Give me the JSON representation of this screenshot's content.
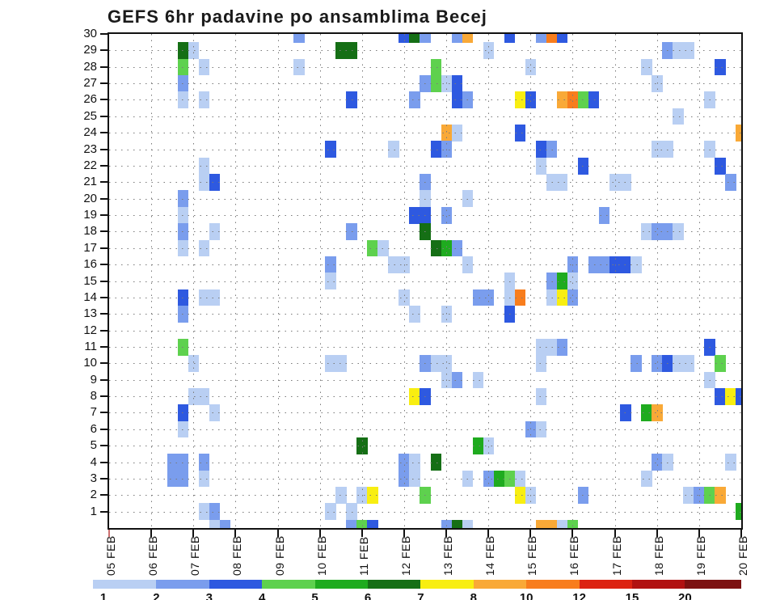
{
  "title": "GEFS 6hr padavine po ansamblima Becej",
  "chart_data": {
    "type": "heatmap",
    "title": "GEFS 6hr padavine po ansamblima Becej",
    "xlabel": "",
    "ylabel": "",
    "x_tick_labels": [
      "05 FEB",
      "06 FEB",
      "07 FEB",
      "08 FEB",
      "09 FEB",
      "10 FEB",
      "11 FEB",
      "12 FEB",
      "13 FEB",
      "14 FEB",
      "15 FEB",
      "16 FEB",
      "17 FEB",
      "18 FEB",
      "19 FEB",
      "20 FEB"
    ],
    "x_steps_per_day": 4,
    "y_tick_labels": [
      "30",
      "29",
      "28",
      "27",
      "26",
      "25",
      "24",
      "23",
      "22",
      "21",
      "20",
      "19",
      "18",
      "17",
      "16",
      "15",
      "14",
      "13",
      "12",
      "11",
      "10",
      "9",
      "8",
      "7",
      "6",
      "5",
      "4",
      "3",
      "2",
      "1"
    ],
    "y_range": [
      0,
      30
    ],
    "grid": "dotted",
    "frame_color": "#111111",
    "grid_dot_color": "#7a7a7a",
    "origin_tick_color": "#cc7070",
    "palette": {
      "c1": "#b9cff3",
      "c2": "#7a9ded",
      "c3": "#2e59e0",
      "c4": "#5ed14e",
      "c5": "#1fab1f",
      "c6": "#156f15",
      "c7": "#f8ee11",
      "c8": "#f9a937",
      "c10": "#f87d1d",
      "c12": "#dc2312",
      "c15": "#b11212",
      "c20": "#7c1111"
    },
    "colorbar": {
      "labels": [
        "1",
        "2",
        "3",
        "4",
        "5",
        "6",
        "7",
        "8",
        "10",
        "12",
        "15",
        "20"
      ],
      "segment_colors": [
        "#b9cff3",
        "#7a9ded",
        "#2e59e0",
        "#5ed14e",
        "#1fab1f",
        "#156f15",
        "#f8ee11",
        "#f9a937",
        "#f87d1d",
        "#dc2312",
        "#b11212",
        "#7c1111"
      ]
    },
    "cells": [
      [
        18,
        30,
        "c2"
      ],
      [
        28,
        30,
        "c3"
      ],
      [
        29,
        30,
        "c6"
      ],
      [
        30,
        30,
        "c2"
      ],
      [
        33,
        30,
        "c2"
      ],
      [
        34,
        30,
        "c8"
      ],
      [
        38,
        30,
        "c3"
      ],
      [
        41,
        30,
        "c2"
      ],
      [
        42,
        30,
        "c10"
      ],
      [
        43,
        30,
        "c3"
      ],
      [
        7,
        29,
        "c6"
      ],
      [
        8,
        29,
        "c1"
      ],
      [
        22,
        29,
        "c6"
      ],
      [
        23,
        29,
        "c6"
      ],
      [
        36,
        29,
        "c1"
      ],
      [
        53,
        29,
        "c2"
      ],
      [
        54,
        29,
        "c1"
      ],
      [
        55,
        29,
        "c1"
      ],
      [
        7,
        28,
        "c4"
      ],
      [
        9,
        28,
        "c1"
      ],
      [
        18,
        28,
        "c1"
      ],
      [
        31,
        28,
        "c4"
      ],
      [
        40,
        28,
        "c1"
      ],
      [
        51,
        28,
        "c1"
      ],
      [
        58,
        28,
        "c3"
      ],
      [
        7,
        27,
        "c2"
      ],
      [
        30,
        27,
        "c2"
      ],
      [
        31,
        27,
        "c4"
      ],
      [
        32,
        27,
        "c1"
      ],
      [
        33,
        27,
        "c3"
      ],
      [
        52,
        27,
        "c1"
      ],
      [
        7,
        26,
        "c1"
      ],
      [
        9,
        26,
        "c1"
      ],
      [
        23,
        26,
        "c3"
      ],
      [
        29,
        26,
        "c2"
      ],
      [
        33,
        26,
        "c3"
      ],
      [
        34,
        26,
        "c2"
      ],
      [
        39,
        26,
        "c7"
      ],
      [
        40,
        26,
        "c3"
      ],
      [
        43,
        26,
        "c8"
      ],
      [
        44,
        26,
        "c10"
      ],
      [
        45,
        26,
        "c4"
      ],
      [
        46,
        26,
        "c3"
      ],
      [
        57,
        26,
        "c1"
      ],
      [
        54,
        25,
        "c1"
      ],
      [
        32,
        24,
        "c8"
      ],
      [
        33,
        24,
        "c1"
      ],
      [
        39,
        24,
        "c3"
      ],
      [
        60,
        24,
        "c8"
      ],
      [
        21,
        23,
        "c3"
      ],
      [
        27,
        23,
        "c1"
      ],
      [
        31,
        23,
        "c3"
      ],
      [
        32,
        23,
        "c2"
      ],
      [
        41,
        23,
        "c3"
      ],
      [
        42,
        23,
        "c2"
      ],
      [
        52,
        23,
        "c1"
      ],
      [
        53,
        23,
        "c1"
      ],
      [
        57,
        23,
        "c1"
      ],
      [
        9,
        22,
        "c1"
      ],
      [
        41,
        22,
        "c1"
      ],
      [
        45,
        22,
        "c3"
      ],
      [
        58,
        22,
        "c3"
      ],
      [
        9,
        21,
        "c1"
      ],
      [
        10,
        21,
        "c3"
      ],
      [
        30,
        21,
        "c2"
      ],
      [
        42,
        21,
        "c1"
      ],
      [
        43,
        21,
        "c1"
      ],
      [
        48,
        21,
        "c1"
      ],
      [
        49,
        21,
        "c1"
      ],
      [
        59,
        21,
        "c2"
      ],
      [
        7,
        20,
        "c2"
      ],
      [
        30,
        20,
        "c1"
      ],
      [
        34,
        20,
        "c1"
      ],
      [
        7,
        19,
        "c1"
      ],
      [
        29,
        19,
        "c3"
      ],
      [
        30,
        19,
        "c3"
      ],
      [
        32,
        19,
        "c2"
      ],
      [
        47,
        19,
        "c2"
      ],
      [
        7,
        18,
        "c2"
      ],
      [
        10,
        18,
        "c1"
      ],
      [
        23,
        18,
        "c2"
      ],
      [
        30,
        18,
        "c6"
      ],
      [
        51,
        18,
        "c1"
      ],
      [
        52,
        18,
        "c2"
      ],
      [
        53,
        18,
        "c2"
      ],
      [
        54,
        18,
        "c1"
      ],
      [
        7,
        17,
        "c1"
      ],
      [
        9,
        17,
        "c1"
      ],
      [
        25,
        17,
        "c4"
      ],
      [
        26,
        17,
        "c1"
      ],
      [
        31,
        17,
        "c6"
      ],
      [
        32,
        17,
        "c5"
      ],
      [
        33,
        17,
        "c2"
      ],
      [
        21,
        16,
        "c2"
      ],
      [
        27,
        16,
        "c1"
      ],
      [
        28,
        16,
        "c1"
      ],
      [
        34,
        16,
        "c1"
      ],
      [
        44,
        16,
        "c2"
      ],
      [
        46,
        16,
        "c2"
      ],
      [
        47,
        16,
        "c2"
      ],
      [
        48,
        16,
        "c3"
      ],
      [
        49,
        16,
        "c3"
      ],
      [
        50,
        16,
        "c1"
      ],
      [
        21,
        15,
        "c1"
      ],
      [
        38,
        15,
        "c1"
      ],
      [
        42,
        15,
        "c2"
      ],
      [
        43,
        15,
        "c5"
      ],
      [
        44,
        15,
        "c1"
      ],
      [
        7,
        14,
        "c3"
      ],
      [
        9,
        14,
        "c1"
      ],
      [
        10,
        14,
        "c1"
      ],
      [
        28,
        14,
        "c1"
      ],
      [
        35,
        14,
        "c2"
      ],
      [
        36,
        14,
        "c2"
      ],
      [
        38,
        14,
        "c1"
      ],
      [
        39,
        14,
        "c10"
      ],
      [
        42,
        14,
        "c1"
      ],
      [
        43,
        14,
        "c7"
      ],
      [
        44,
        14,
        "c2"
      ],
      [
        7,
        13,
        "c2"
      ],
      [
        29,
        13,
        "c1"
      ],
      [
        32,
        13,
        "c1"
      ],
      [
        38,
        13,
        "c3"
      ],
      [
        7,
        11,
        "c4"
      ],
      [
        41,
        11,
        "c1"
      ],
      [
        42,
        11,
        "c1"
      ],
      [
        43,
        11,
        "c2"
      ],
      [
        57,
        11,
        "c3"
      ],
      [
        8,
        10,
        "c1"
      ],
      [
        21,
        10,
        "c1"
      ],
      [
        22,
        10,
        "c1"
      ],
      [
        30,
        10,
        "c2"
      ],
      [
        31,
        10,
        "c1"
      ],
      [
        32,
        10,
        "c1"
      ],
      [
        41,
        10,
        "c1"
      ],
      [
        50,
        10,
        "c2"
      ],
      [
        52,
        10,
        "c2"
      ],
      [
        53,
        10,
        "c3"
      ],
      [
        54,
        10,
        "c1"
      ],
      [
        55,
        10,
        "c1"
      ],
      [
        58,
        10,
        "c4"
      ],
      [
        32,
        9,
        "c1"
      ],
      [
        33,
        9,
        "c2"
      ],
      [
        35,
        9,
        "c1"
      ],
      [
        57,
        9,
        "c1"
      ],
      [
        8,
        8,
        "c1"
      ],
      [
        9,
        8,
        "c1"
      ],
      [
        29,
        8,
        "c7"
      ],
      [
        30,
        8,
        "c3"
      ],
      [
        41,
        8,
        "c1"
      ],
      [
        58,
        8,
        "c3"
      ],
      [
        59,
        8,
        "c7"
      ],
      [
        60,
        8,
        "c3"
      ],
      [
        7,
        7,
        "c3"
      ],
      [
        10,
        7,
        "c1"
      ],
      [
        49,
        7,
        "c3"
      ],
      [
        51,
        7,
        "c5"
      ],
      [
        52,
        7,
        "c8"
      ],
      [
        7,
        6,
        "c1"
      ],
      [
        40,
        6,
        "c2"
      ],
      [
        41,
        6,
        "c1"
      ],
      [
        24,
        5,
        "c6"
      ],
      [
        35,
        5,
        "c5"
      ],
      [
        36,
        5,
        "c1"
      ],
      [
        6,
        4,
        "c2"
      ],
      [
        7,
        4,
        "c2"
      ],
      [
        9,
        4,
        "c2"
      ],
      [
        28,
        4,
        "c2"
      ],
      [
        29,
        4,
        "c1"
      ],
      [
        31,
        4,
        "c6"
      ],
      [
        52,
        4,
        "c2"
      ],
      [
        53,
        4,
        "c1"
      ],
      [
        59,
        4,
        "c1"
      ],
      [
        6,
        3,
        "c2"
      ],
      [
        7,
        3,
        "c2"
      ],
      [
        9,
        3,
        "c1"
      ],
      [
        28,
        3,
        "c2"
      ],
      [
        29,
        3,
        "c1"
      ],
      [
        34,
        3,
        "c1"
      ],
      [
        36,
        3,
        "c2"
      ],
      [
        37,
        3,
        "c5"
      ],
      [
        38,
        3,
        "c4"
      ],
      [
        39,
        3,
        "c1"
      ],
      [
        51,
        3,
        "c1"
      ],
      [
        22,
        2,
        "c1"
      ],
      [
        24,
        2,
        "c1"
      ],
      [
        25,
        2,
        "c7"
      ],
      [
        30,
        2,
        "c4"
      ],
      [
        39,
        2,
        "c7"
      ],
      [
        40,
        2,
        "c1"
      ],
      [
        45,
        2,
        "c2"
      ],
      [
        55,
        2,
        "c1"
      ],
      [
        56,
        2,
        "c2"
      ],
      [
        57,
        2,
        "c4"
      ],
      [
        58,
        2,
        "c8"
      ],
      [
        9,
        1,
        "c1"
      ],
      [
        10,
        1,
        "c2"
      ],
      [
        21,
        1,
        "c1"
      ],
      [
        23,
        1,
        "c1"
      ],
      [
        60,
        1,
        "c5"
      ],
      [
        10,
        0,
        "c1"
      ],
      [
        11,
        0,
        "c2"
      ],
      [
        23,
        0,
        "c2"
      ],
      [
        24,
        0,
        "c4"
      ],
      [
        25,
        0,
        "c3"
      ],
      [
        32,
        0,
        "c2"
      ],
      [
        33,
        0,
        "c6"
      ],
      [
        34,
        0,
        "c1"
      ],
      [
        41,
        0,
        "c8"
      ],
      [
        42,
        0,
        "c8"
      ],
      [
        43,
        0,
        "c1"
      ],
      [
        44,
        0,
        "c4"
      ]
    ]
  }
}
